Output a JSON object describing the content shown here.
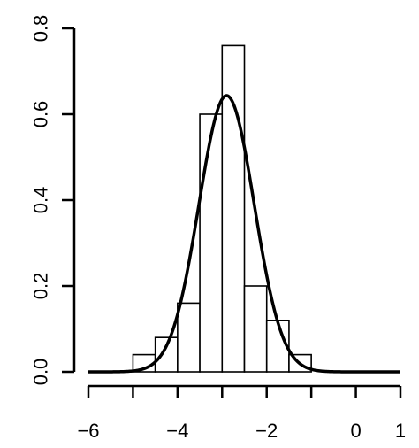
{
  "chart_data": {
    "type": "bar",
    "title": "",
    "xlabel": "",
    "ylabel": "",
    "xlim": [
      -6,
      1
    ],
    "ylim": [
      0,
      0.8
    ],
    "grid": false,
    "legend": "none",
    "x_ticks": [
      -6,
      -4,
      -2,
      0,
      1
    ],
    "x_tick_labels": [
      "−6",
      "−4",
      "−2",
      "0",
      "1"
    ],
    "x_minor_ticks": [
      -5,
      -3,
      -1
    ],
    "y_ticks": [
      0,
      0.2,
      0.4,
      0.6,
      0.8
    ],
    "y_tick_labels": [
      "0.0",
      "0.2",
      "0.4",
      "0.6",
      "0.8"
    ],
    "histogram": {
      "bin_edges": [
        -5.0,
        -4.5,
        -4.0,
        -3.5,
        -3.0,
        -2.5,
        -2.0,
        -1.5,
        -1.0
      ],
      "density": [
        0.04,
        0.08,
        0.16,
        0.6,
        0.76,
        0.2,
        0.12,
        0.04
      ],
      "fill": "#ffffff",
      "stroke": "#000000"
    },
    "curve": {
      "kind": "normal-density",
      "mean": -2.9,
      "sd": 0.62,
      "x_range": [
        -6,
        1
      ],
      "color": "#000000"
    }
  }
}
